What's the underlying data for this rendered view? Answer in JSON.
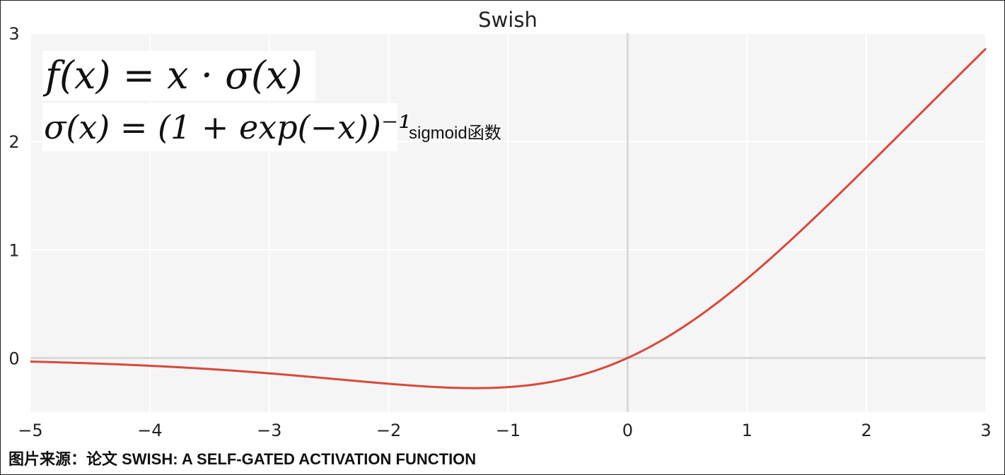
{
  "chart_data": {
    "type": "line",
    "title": "Swish",
    "xlabel": "",
    "ylabel": "",
    "xlim": [
      -5,
      3
    ],
    "ylim": [
      -0.5,
      3
    ],
    "x_ticks": [
      -5,
      -4,
      -3,
      -2,
      -1,
      0,
      1,
      2,
      3
    ],
    "y_ticks": [
      0,
      1,
      2,
      3
    ],
    "x_tick_labels": [
      "−5",
      "−4",
      "−3",
      "−2",
      "−1",
      "0",
      "1",
      "2",
      "3"
    ],
    "y_tick_labels": [
      "0",
      "1",
      "2",
      "3"
    ],
    "grid": true,
    "series": [
      {
        "function": "x * sigmoid(x)",
        "color": "#d9483b",
        "x": [
          -5,
          -4.5,
          -4,
          -3.5,
          -3,
          -2.5,
          -2,
          -1.5,
          -1.28,
          -1,
          -0.5,
          0,
          0.5,
          1,
          1.5,
          2,
          2.5,
          3
        ],
        "y": [
          -0.033,
          -0.05,
          -0.072,
          -0.102,
          -0.142,
          -0.189,
          -0.238,
          -0.274,
          -0.278,
          -0.269,
          -0.189,
          0,
          0.311,
          0.731,
          1.226,
          1.762,
          2.311,
          2.858
        ]
      }
    ],
    "annotations": {
      "formula_swish": "f(x) = x · σ(x)",
      "formula_sigmoid": "σ(x) = (1 + exp(−x))⁻¹",
      "sigmoid_note": "sigmoid函数"
    }
  },
  "caption": "图片来源：论文 SWISH: A SELF-GATED ACTIVATION FUNCTION",
  "colors": {
    "plot_background": "#f5f5f5",
    "grid": "#ffffff",
    "zero_axis": "#d9d9d9",
    "curve": "#d9483b"
  }
}
